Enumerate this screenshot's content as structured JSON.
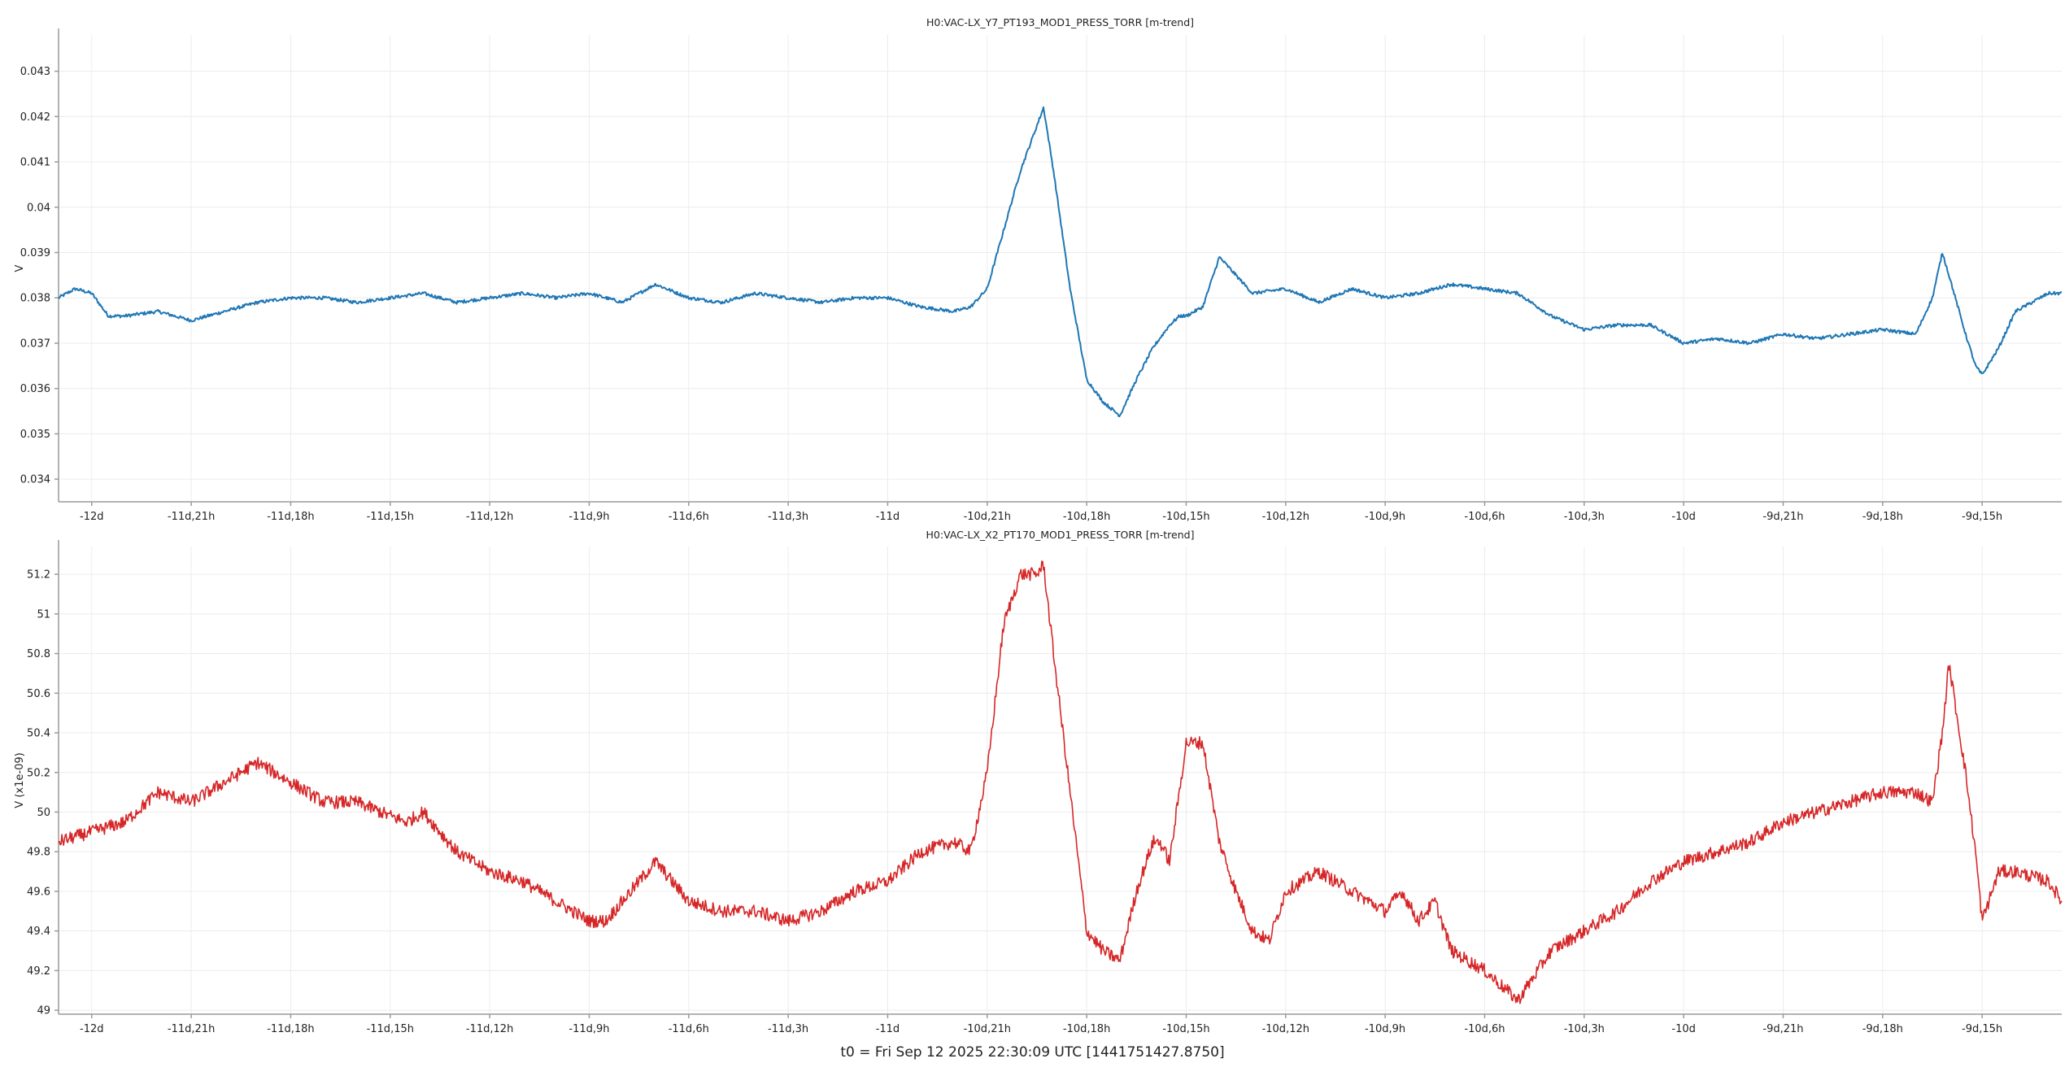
{
  "footer": "t0 = Fri Sep 12 2025 22:30:09 UTC [1441751427.8750]",
  "chart_data": [
    {
      "type": "line",
      "title": "H0:VAC-LX_Y7_PT193_MOD1_PRESS_TORR [m-trend]",
      "ylabel": "V",
      "xlabel": "",
      "color": "#1f77b4",
      "x_unit": "hours relative to t0",
      "xlim": [
        -289,
        -228.6
      ],
      "ylim": [
        0.0335,
        0.0438
      ],
      "grid": true,
      "x_ticks": [
        -288,
        -285,
        -282,
        -279,
        -276,
        -273,
        -270,
        -267,
        -264,
        -261,
        -258,
        -255,
        -252,
        -249,
        -246,
        -243,
        -240,
        -237,
        -234,
        -231
      ],
      "x_tick_labels": [
        "-12d",
        "-11d,21h",
        "-11d,18h",
        "-11d,15h",
        "-11d,12h",
        "-11d,9h",
        "-11d,6h",
        "-11d,3h",
        "-11d",
        "-10d,21h",
        "-10d,18h",
        "-10d,15h",
        "-10d,12h",
        "-10d,9h",
        "-10d,6h",
        "-10d,3h",
        "-10d",
        "-9d,21h",
        "-9d,18h",
        "-9d,15h"
      ],
      "y_ticks": [
        0.034,
        0.035,
        0.036,
        0.037,
        0.038,
        0.039,
        0.04,
        0.041,
        0.042,
        0.043
      ],
      "y_tick_labels": [
        "0.034",
        "0.035",
        "0.036",
        "0.037",
        "0.038",
        "0.039",
        "0.04",
        "0.041",
        "0.042",
        "0.043"
      ],
      "x": [
        -289,
        -288.5,
        -288,
        -287.5,
        -287,
        -286,
        -285,
        -284,
        -283,
        -282,
        -281,
        -280,
        -279,
        -278,
        -277,
        -276,
        -275,
        -274,
        -273,
        -272,
        -271,
        -270,
        -269,
        -268,
        -267,
        -266,
        -265,
        -264,
        -263,
        -262,
        -261.5,
        -261,
        -260.5,
        -260,
        -259.5,
        -259.3,
        -259,
        -258.5,
        -258,
        -257.5,
        -257,
        -256.5,
        -256,
        -255.5,
        -255.2,
        -255,
        -254.5,
        -254,
        -253,
        -252,
        -251,
        -250,
        -249,
        -248,
        -247,
        -246,
        -245,
        -244,
        -243,
        -242,
        -241,
        -240,
        -239,
        -238,
        -237,
        -236,
        -235,
        -234,
        -233,
        -232.5,
        -232.2,
        -232,
        -231.5,
        -231.2,
        -231,
        -230.5,
        -230,
        -229,
        -228.6
      ],
      "y": [
        0.038,
        0.0382,
        0.0381,
        0.0376,
        0.0376,
        0.0377,
        0.0375,
        0.0377,
        0.0379,
        0.038,
        0.038,
        0.0379,
        0.038,
        0.0381,
        0.0379,
        0.038,
        0.0381,
        0.038,
        0.0381,
        0.0379,
        0.0383,
        0.038,
        0.0379,
        0.0381,
        0.038,
        0.0379,
        0.038,
        0.038,
        0.0378,
        0.0377,
        0.0378,
        0.0382,
        0.0395,
        0.0408,
        0.0418,
        0.0422,
        0.0408,
        0.0382,
        0.0362,
        0.0357,
        0.0354,
        0.0362,
        0.0369,
        0.0374,
        0.0376,
        0.0376,
        0.0378,
        0.0389,
        0.0381,
        0.0382,
        0.0379,
        0.0382,
        0.038,
        0.0381,
        0.0383,
        0.0382,
        0.0381,
        0.0376,
        0.0373,
        0.0374,
        0.0374,
        0.037,
        0.0371,
        0.037,
        0.0372,
        0.0371,
        0.0372,
        0.0373,
        0.0372,
        0.038,
        0.039,
        0.0385,
        0.0372,
        0.0365,
        0.0363,
        0.0369,
        0.0377,
        0.0381,
        0.0381
      ]
    },
    {
      "type": "line",
      "title": "H0:VAC-LX_X2_PT170_MOD1_PRESS_TORR [m-trend]",
      "ylabel": "V (x1e-09)",
      "xlabel": "",
      "color": "#d62728",
      "x_unit": "hours relative to t0",
      "xlim": [
        -289,
        -228.6
      ],
      "ylim": [
        48.98,
        51.34
      ],
      "grid": true,
      "x_ticks": [
        -288,
        -285,
        -282,
        -279,
        -276,
        -273,
        -270,
        -267,
        -264,
        -261,
        -258,
        -255,
        -252,
        -249,
        -246,
        -243,
        -240,
        -237,
        -234,
        -231
      ],
      "x_tick_labels": [
        "-12d",
        "-11d,21h",
        "-11d,18h",
        "-11d,15h",
        "-11d,12h",
        "-11d,9h",
        "-11d,6h",
        "-11d,3h",
        "-11d",
        "-10d,21h",
        "-10d,18h",
        "-10d,15h",
        "-10d,12h",
        "-10d,9h",
        "-10d,6h",
        "-10d,3h",
        "-10d",
        "-9d,21h",
        "-9d,18h",
        "-9d,15h"
      ],
      "y_ticks": [
        49,
        49.2,
        49.4,
        49.6,
        49.8,
        50,
        50.2,
        50.4,
        50.6,
        50.8,
        51,
        51.2
      ],
      "y_tick_labels": [
        "49",
        "49.2",
        "49.4",
        "49.6",
        "49.8",
        "50",
        "50.2",
        "50.4",
        "50.6",
        "50.8",
        "51",
        "51.2"
      ],
      "x": [
        -289,
        -288,
        -287,
        -286,
        -285,
        -284,
        -283.5,
        -283,
        -282,
        -281,
        -280,
        -279,
        -278.5,
        -278,
        -277,
        -276,
        -275,
        -274,
        -273.5,
        -273,
        -272.5,
        -272,
        -271,
        -270,
        -269,
        -268,
        -267,
        -266,
        -265,
        -264,
        -263,
        -262,
        -261.5,
        -261,
        -260.5,
        -260,
        -259.5,
        -259.3,
        -259,
        -258.5,
        -258,
        -257.5,
        -257,
        -256.5,
        -256,
        -255.8,
        -255.5,
        -255,
        -254.5,
        -254,
        -253.5,
        -253,
        -252.5,
        -252,
        -251,
        -250,
        -249,
        -248.5,
        -248,
        -247.5,
        -247,
        -246,
        -245,
        -244,
        -243,
        -242,
        -241,
        -240,
        -239,
        -238,
        -237,
        -236,
        -235,
        -234,
        -233,
        -232.5,
        -232.2,
        -232,
        -231.5,
        -231.2,
        -231,
        -230.5,
        -230,
        -229,
        -228.6
      ],
      "y": [
        49.85,
        49.9,
        49.95,
        50.1,
        50.05,
        50.15,
        50.2,
        50.25,
        50.15,
        50.05,
        50.05,
        49.98,
        49.95,
        50.0,
        49.8,
        49.7,
        49.65,
        49.55,
        49.5,
        49.45,
        49.45,
        49.55,
        49.75,
        49.55,
        49.5,
        49.5,
        49.45,
        49.5,
        49.6,
        49.65,
        49.8,
        49.85,
        49.8,
        50.2,
        50.95,
        51.2,
        51.2,
        51.25,
        50.8,
        50.1,
        49.4,
        49.3,
        49.25,
        49.6,
        49.85,
        49.85,
        49.75,
        50.35,
        50.35,
        49.85,
        49.6,
        49.4,
        49.35,
        49.6,
        49.7,
        49.6,
        49.5,
        49.6,
        49.45,
        49.55,
        49.3,
        49.2,
        49.05,
        49.3,
        49.4,
        49.5,
        49.65,
        49.75,
        49.8,
        49.85,
        49.95,
        50.0,
        50.05,
        50.1,
        50.1,
        50.05,
        50.4,
        50.75,
        50.2,
        49.8,
        49.45,
        49.7,
        49.7,
        49.65,
        49.55
      ]
    }
  ]
}
